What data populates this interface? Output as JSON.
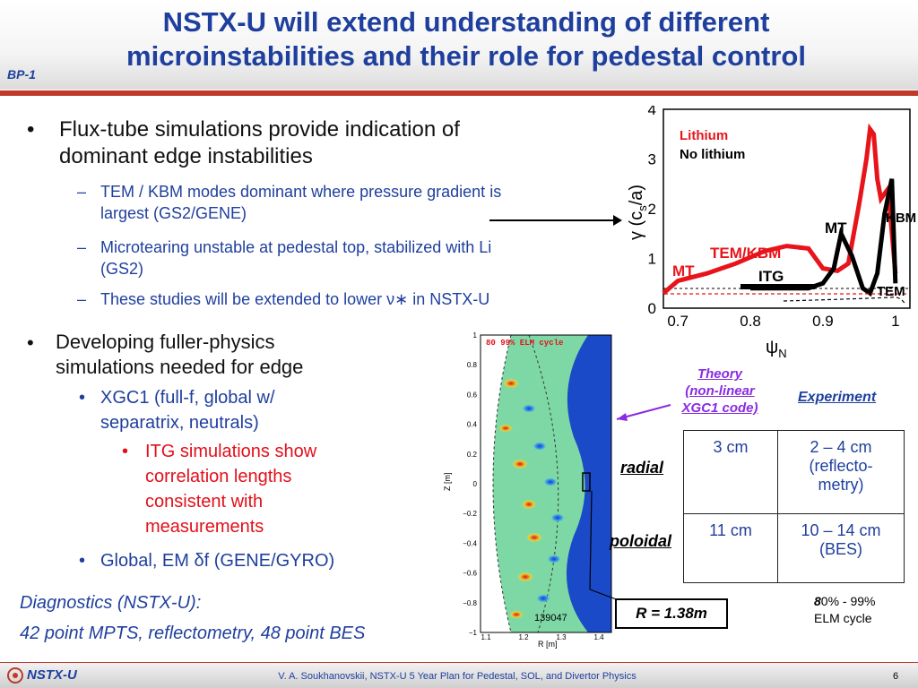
{
  "slide": {
    "title_line1": "NSTX-U will extend understanding of different",
    "title_line2": "microinstabilities and their role for pedestal control",
    "tag": "BP-1"
  },
  "bullets": {
    "b1": {
      "text_line1": "Flux-tube simulations provide indication of",
      "text_line2": "dominant edge instabilities",
      "subs": [
        {
          "line1": "TEM / KBM modes dominant where pressure gradient is",
          "line2": "largest (GS2/GENE)"
        },
        {
          "line1": "Microtearing unstable at pedestal top, stabilized with Li",
          "line2": "(GS2)"
        },
        {
          "line1": "These studies will be extended to lower ν∗ in NSTX-U",
          "line2": ""
        }
      ]
    },
    "b2": {
      "text_line1": "Developing fuller-physics",
      "text_line2": "simulations needed for edge",
      "sub1_line1": "XGC1 (full-f, global w/",
      "sub1_line2": "separatrix, neutrals)",
      "subsub_lines": [
        "ITG simulations show",
        "correlation lengths",
        "consistent with",
        "measurements"
      ],
      "sub2": "Global, EM δf (GENE/GYRO)"
    }
  },
  "diagnostics": {
    "line1": "Diagnostics (NSTX-U):",
    "line2": "42 point MPTS, reflectometry, 48 point BES"
  },
  "plot_gamma": {
    "legend_lithium": "Lithium",
    "legend_no_lithium": "No lithium",
    "ylabel": "γ (c",
    "ylabel_sub": "s",
    "ylabel_end": "/a)",
    "xlabel": "ψ",
    "xlabel_sub": "N",
    "label_mt_left": "MT",
    "label_tem_kbm": "TEM/KBM",
    "label_itg": "ITG",
    "label_mt_right": "MT",
    "label_kbm": "KBM",
    "label_tem": "TEM",
    "colors": {
      "lithium": "#e8141b",
      "no_lithium": "#000000"
    }
  },
  "chart_data": {
    "type": "line",
    "xlabel": "ψN",
    "ylabel": "γ (cs/a)",
    "xlim": [
      0.68,
      1.02
    ],
    "ylim": [
      0,
      4
    ],
    "xticks": [
      "0.7",
      "0.8",
      "0.9",
      "1"
    ],
    "yticks": [
      "0",
      "1",
      "2",
      "3",
      "4"
    ],
    "series": [
      {
        "name": "Lithium",
        "color": "#e8141b",
        "x": [
          0.68,
          0.7,
          0.74,
          0.78,
          0.82,
          0.85,
          0.88,
          0.9,
          0.92,
          0.935,
          0.95,
          0.96,
          0.965,
          0.97,
          0.975,
          0.98,
          0.99,
          1.0
        ],
        "y": [
          0.3,
          0.55,
          0.7,
          0.9,
          1.15,
          1.25,
          1.2,
          0.8,
          0.75,
          0.9,
          2.1,
          3.0,
          3.6,
          3.5,
          2.6,
          2.2,
          2.4,
          0.7
        ]
      },
      {
        "name": "No lithium",
        "color": "#000000",
        "x": [
          0.8,
          0.88,
          0.9,
          0.915,
          0.925,
          0.94,
          0.955,
          0.965,
          0.975,
          0.985,
          0.995,
          1.0
        ],
        "y": [
          0.4,
          0.4,
          0.5,
          0.8,
          1.5,
          1.05,
          0.4,
          0.3,
          0.7,
          1.9,
          2.6,
          0.5
        ]
      }
    ]
  },
  "plot_xgc": {
    "overlay": "80  99% ELM cycle",
    "ylabel": "Z [m]",
    "xlabel": "R [m]",
    "shot": "139047",
    "yticks": [
      "1",
      "0.8",
      "0.6",
      "0.4",
      "0.2",
      "0",
      "−0.2",
      "−0.4",
      "−0.6",
      "−0.8",
      "−1"
    ],
    "xticks": [
      "1.1",
      "1.2",
      "1.3",
      "1.4"
    ]
  },
  "labels": {
    "theory_lines": [
      "Theory",
      "(non-linear",
      "XGC1 code)"
    ],
    "experiment": "Experiment",
    "radial": "radial",
    "poloidal": "poloidal",
    "r_box": "R = 1.38m",
    "elm_bold": "8",
    "elm_rest": "0% - 99%",
    "elm_line2": "ELM cycle"
  },
  "table": {
    "r1c1": "3 cm",
    "r1c2": [
      "2 – 4 cm",
      "(reflecto-",
      "metry)"
    ],
    "r2c1": "11 cm",
    "r2c2": [
      "10 – 14 cm",
      "(BES)"
    ]
  },
  "footer": {
    "logo": "NSTX-U",
    "citation": "V. A. Soukhanovskii, NSTX-U 5 Year Plan for Pedestal, SOL, and Divertor Physics",
    "page": "6"
  }
}
